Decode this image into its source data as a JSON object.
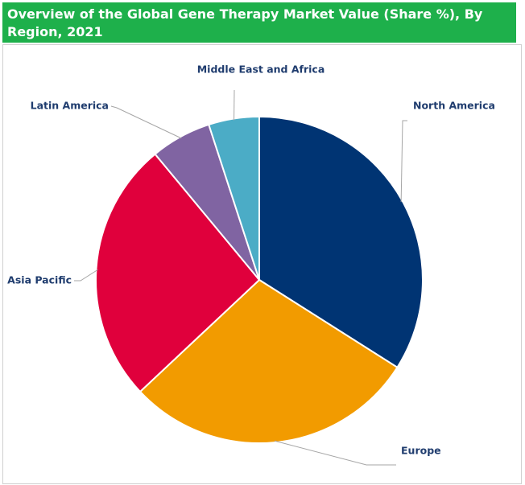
{
  "chart_data": {
    "type": "pie",
    "title": "Overview of the Global Gene Therapy Market Value (Share %), By Region, 2021",
    "categories": [
      "North America",
      "Europe",
      "Asia Pacific",
      "Latin America",
      "Middle East and Africa"
    ],
    "values": [
      34,
      29,
      26,
      6,
      5
    ],
    "colors": [
      "#003473",
      "#f29b00",
      "#e0003c",
      "#8064a2",
      "#4bacc6"
    ]
  }
}
